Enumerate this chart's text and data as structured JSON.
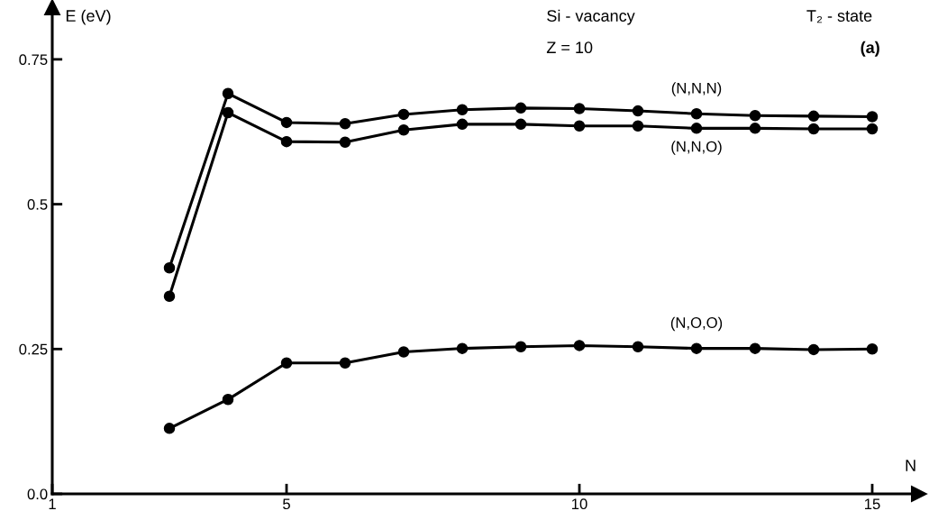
{
  "chart_data": {
    "type": "line",
    "xlabel": "N",
    "ylabel": "E (eV)",
    "x": [
      3,
      4,
      5,
      6,
      7,
      8,
      9,
      10,
      11,
      12,
      13,
      14,
      15
    ],
    "series": [
      {
        "name": "(N,N,N)",
        "color": "#000000",
        "values": [
          0.39,
          0.691,
          0.641,
          0.639,
          0.655,
          0.663,
          0.666,
          0.665,
          0.661,
          0.656,
          0.653,
          0.652,
          0.651
        ]
      },
      {
        "name": "(N,N,O)",
        "color": "#000000",
        "values": [
          0.341,
          0.658,
          0.608,
          0.607,
          0.628,
          0.638,
          0.638,
          0.635,
          0.635,
          0.631,
          0.631,
          0.63,
          0.63
        ]
      },
      {
        "name": "(N,O,O)",
        "color": "#000000",
        "values": [
          0.113,
          0.163,
          0.226,
          0.226,
          0.245,
          0.251,
          0.254,
          0.256,
          0.254,
          0.251,
          0.251,
          0.249,
          0.25
        ]
      }
    ],
    "xlim": [
      1,
      15.8
    ],
    "ylim": [
      0,
      0.84
    ],
    "xticks": [
      1,
      5,
      10,
      15
    ],
    "yticks": [
      {
        "value": 0,
        "label": "0.0"
      },
      0.25,
      0.5,
      0.75
    ],
    "annotations": [
      "Si - vacancy",
      "Z = 10",
      "T₂ - state",
      "(a)"
    ],
    "marker": "circle",
    "line_style": "solid",
    "grid": false,
    "legend": false
  }
}
